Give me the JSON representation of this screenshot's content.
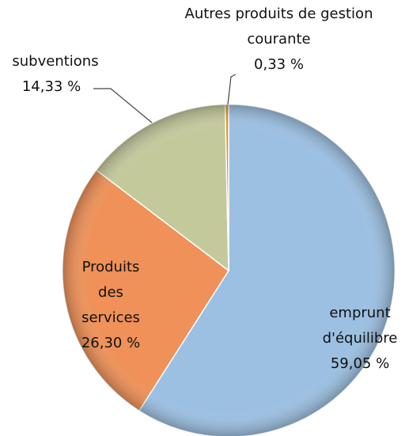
{
  "chart_data": {
    "type": "pie",
    "categories": [
      "emprunt d'équilibre",
      "Produits des services",
      "subventions",
      "Autres produits de gestion courante"
    ],
    "values": [
      59.05,
      26.3,
      14.33,
      0.33
    ],
    "value_labels": [
      "59,05 %",
      "26,30 %",
      "14,33 %",
      "0,33 %"
    ],
    "colors": [
      "#9cc0e2",
      "#ef9158",
      "#c4c99c",
      "#d9952f"
    ]
  }
}
